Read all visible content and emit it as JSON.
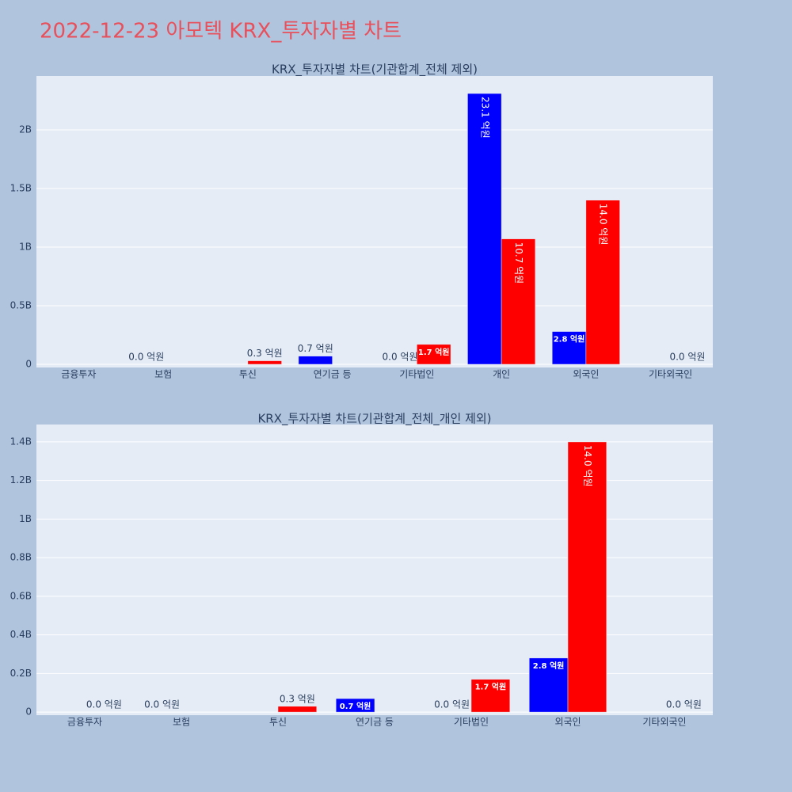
{
  "title": "2022-12-23 아모텍 KRX_투자자별 차트",
  "chart_data": [
    {
      "type": "bar",
      "title": "KRX_투자자별 차트(기관합계_전체 제외)",
      "categories": [
        "금융투자",
        "보험",
        "투신",
        "연기금 등",
        "기타법인",
        "개인",
        "외국인",
        "기타외국인"
      ],
      "series": [
        {
          "color": "#0000ff",
          "values": [
            0,
            0,
            0,
            70000000,
            0,
            2310000000,
            280000000,
            0
          ],
          "value_labels": [
            null,
            "0.0 억원",
            null,
            "0.7 억원",
            "0.0 억원",
            "23.1 억원",
            "2.8 억원",
            null
          ]
        },
        {
          "color": "#ff0000",
          "values": [
            0,
            0,
            30000000,
            0,
            170000000,
            1070000000,
            1400000000,
            0
          ],
          "value_labels": [
            null,
            null,
            "0.3 억원",
            null,
            "1.7 억원",
            "10.7 억원",
            "14.0 억원",
            "0.0 억원"
          ]
        }
      ],
      "ylim": [
        -27000000,
        2459000000
      ],
      "yticks": [
        0,
        {
          "value": 500000000,
          "label": "0.5B"
        },
        {
          "value": 1000000000,
          "label": "1B"
        },
        {
          "value": 1500000000,
          "label": "1.5B"
        },
        {
          "value": 2000000000,
          "label": "2B"
        }
      ],
      "grid": true
    },
    {
      "type": "bar",
      "title": "KRX_투자자별 차트(기관합계_전체_개인 제외)",
      "categories": [
        "금융투자",
        "보험",
        "투신",
        "연기금 등",
        "기타법인",
        "외국인",
        "기타외국인"
      ],
      "series": [
        {
          "color": "#0000ff",
          "values": [
            0,
            0,
            0,
            70000000,
            0,
            280000000,
            0
          ],
          "value_labels": [
            null,
            "0.0 억원",
            null,
            "0.7 억원",
            "0.0 억원",
            "2.8 억원",
            null
          ]
        },
        {
          "color": "#ff0000",
          "values": [
            0,
            0,
            30000000,
            0,
            170000000,
            1400000000,
            0
          ],
          "value_labels": [
            "0.0 억원",
            null,
            "0.3 억원",
            null,
            "1.7 억원",
            "14.0 억원",
            "0.0 억원"
          ]
        }
      ],
      "ylim": [
        -16000000,
        1490000000
      ],
      "yticks": [
        0,
        {
          "value": 200000000,
          "label": "0.2B"
        },
        {
          "value": 400000000,
          "label": "0.4B"
        },
        {
          "value": 600000000,
          "label": "0.6B"
        },
        {
          "value": 800000000,
          "label": "0.8B"
        },
        {
          "value": 1000000000,
          "label": "1B"
        },
        {
          "value": 1200000000,
          "label": "1.2B"
        },
        {
          "value": 1400000000,
          "label": "1.4B"
        }
      ],
      "grid": true
    }
  ]
}
